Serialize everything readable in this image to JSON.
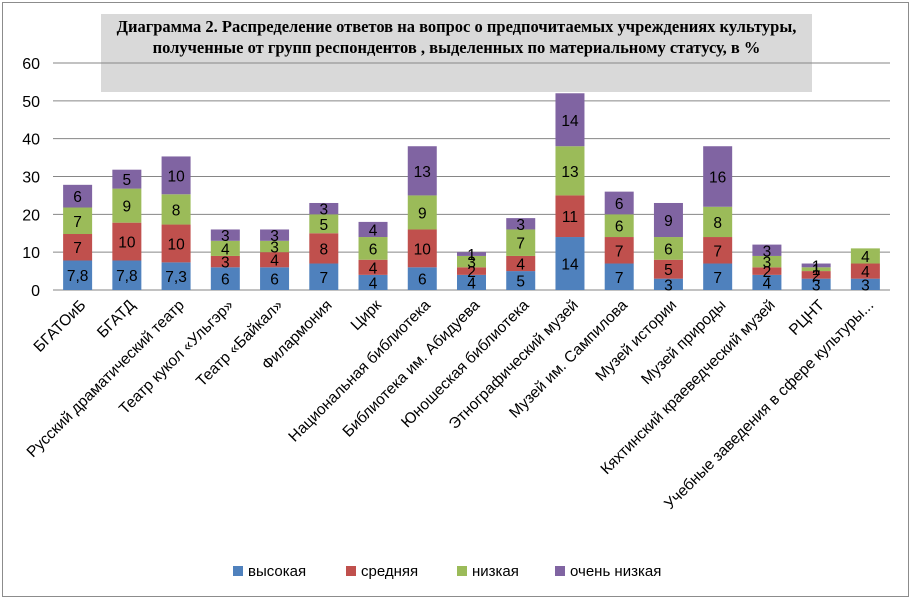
{
  "chart_data": {
    "type": "bar",
    "stacked": true,
    "title": "Диаграмма 2. Распределение  ответов  на вопрос о предпочитаемых учреждениях культуры, полученные от групп респондентов , выделенных по материальному статусу, в  %",
    "ylim": [
      0,
      60
    ],
    "yticks": [
      "0",
      "10",
      "20",
      "30",
      "40",
      "50",
      "60"
    ],
    "grid": true,
    "legend_position": "bottom",
    "categories": [
      "БГАТОиБ",
      "БГАТД",
      "Русский драматический театр",
      "Театр кукол «Ульгэр»",
      "Театр «Байкал»",
      "Филармония",
      "Цирк",
      "Национальная библиотека",
      "Библиотека им. Абидуева",
      "Юношеская библиотека",
      "Этнографический музей",
      "Музей им. Сампилова",
      "Музей истории",
      "Музей природы",
      "Кяхтинский краеведческий музей",
      "РЦНТ",
      "Учебные заведения в сфере культуры..."
    ],
    "series": [
      {
        "name": "высокая",
        "color": "#4f81bd",
        "values": [
          7.8,
          7.8,
          7.3,
          6,
          6,
          7,
          4,
          6,
          4,
          5,
          14,
          7,
          3,
          7,
          4,
          3,
          3
        ],
        "labels": [
          "7,8",
          "7,8",
          "7,3",
          "6",
          "6",
          "7",
          "4",
          "6",
          "4",
          "5",
          "14",
          "7",
          "3",
          "7",
          "4",
          "3",
          "3"
        ]
      },
      {
        "name": "средняя",
        "color": "#c0504d",
        "values": [
          7,
          10,
          10,
          3,
          4,
          8,
          4,
          10,
          2,
          4,
          11,
          7,
          5,
          7,
          2,
          2,
          4
        ],
        "labels": [
          "7",
          "10",
          "10",
          "3",
          "4",
          "8",
          "4",
          "10",
          "2",
          "4",
          "11",
          "7",
          "5",
          "7",
          "2",
          "2",
          "4"
        ]
      },
      {
        "name": "низкая",
        "color": "#9bbb59",
        "values": [
          7,
          9,
          8,
          4,
          3,
          5,
          6,
          9,
          3,
          7,
          13,
          6,
          6,
          8,
          3,
          1,
          4
        ],
        "labels": [
          "7",
          "9",
          "8",
          "4",
          "3",
          "5",
          "6",
          "9",
          "3",
          "7",
          "13",
          "6",
          "6",
          "8",
          "3",
          "1",
          "4"
        ]
      },
      {
        "name": "очень низкая",
        "color": "#8064a2",
        "values": [
          6,
          5,
          10,
          3,
          3,
          3,
          4,
          13,
          1,
          3,
          14,
          6,
          9,
          16,
          3,
          1,
          0
        ],
        "labels": [
          "6",
          "5",
          "10",
          "3",
          "3",
          "3",
          "4",
          "13",
          "1",
          "3",
          "14",
          "6",
          "9",
          "16",
          "3",
          "1",
          ""
        ]
      }
    ]
  }
}
